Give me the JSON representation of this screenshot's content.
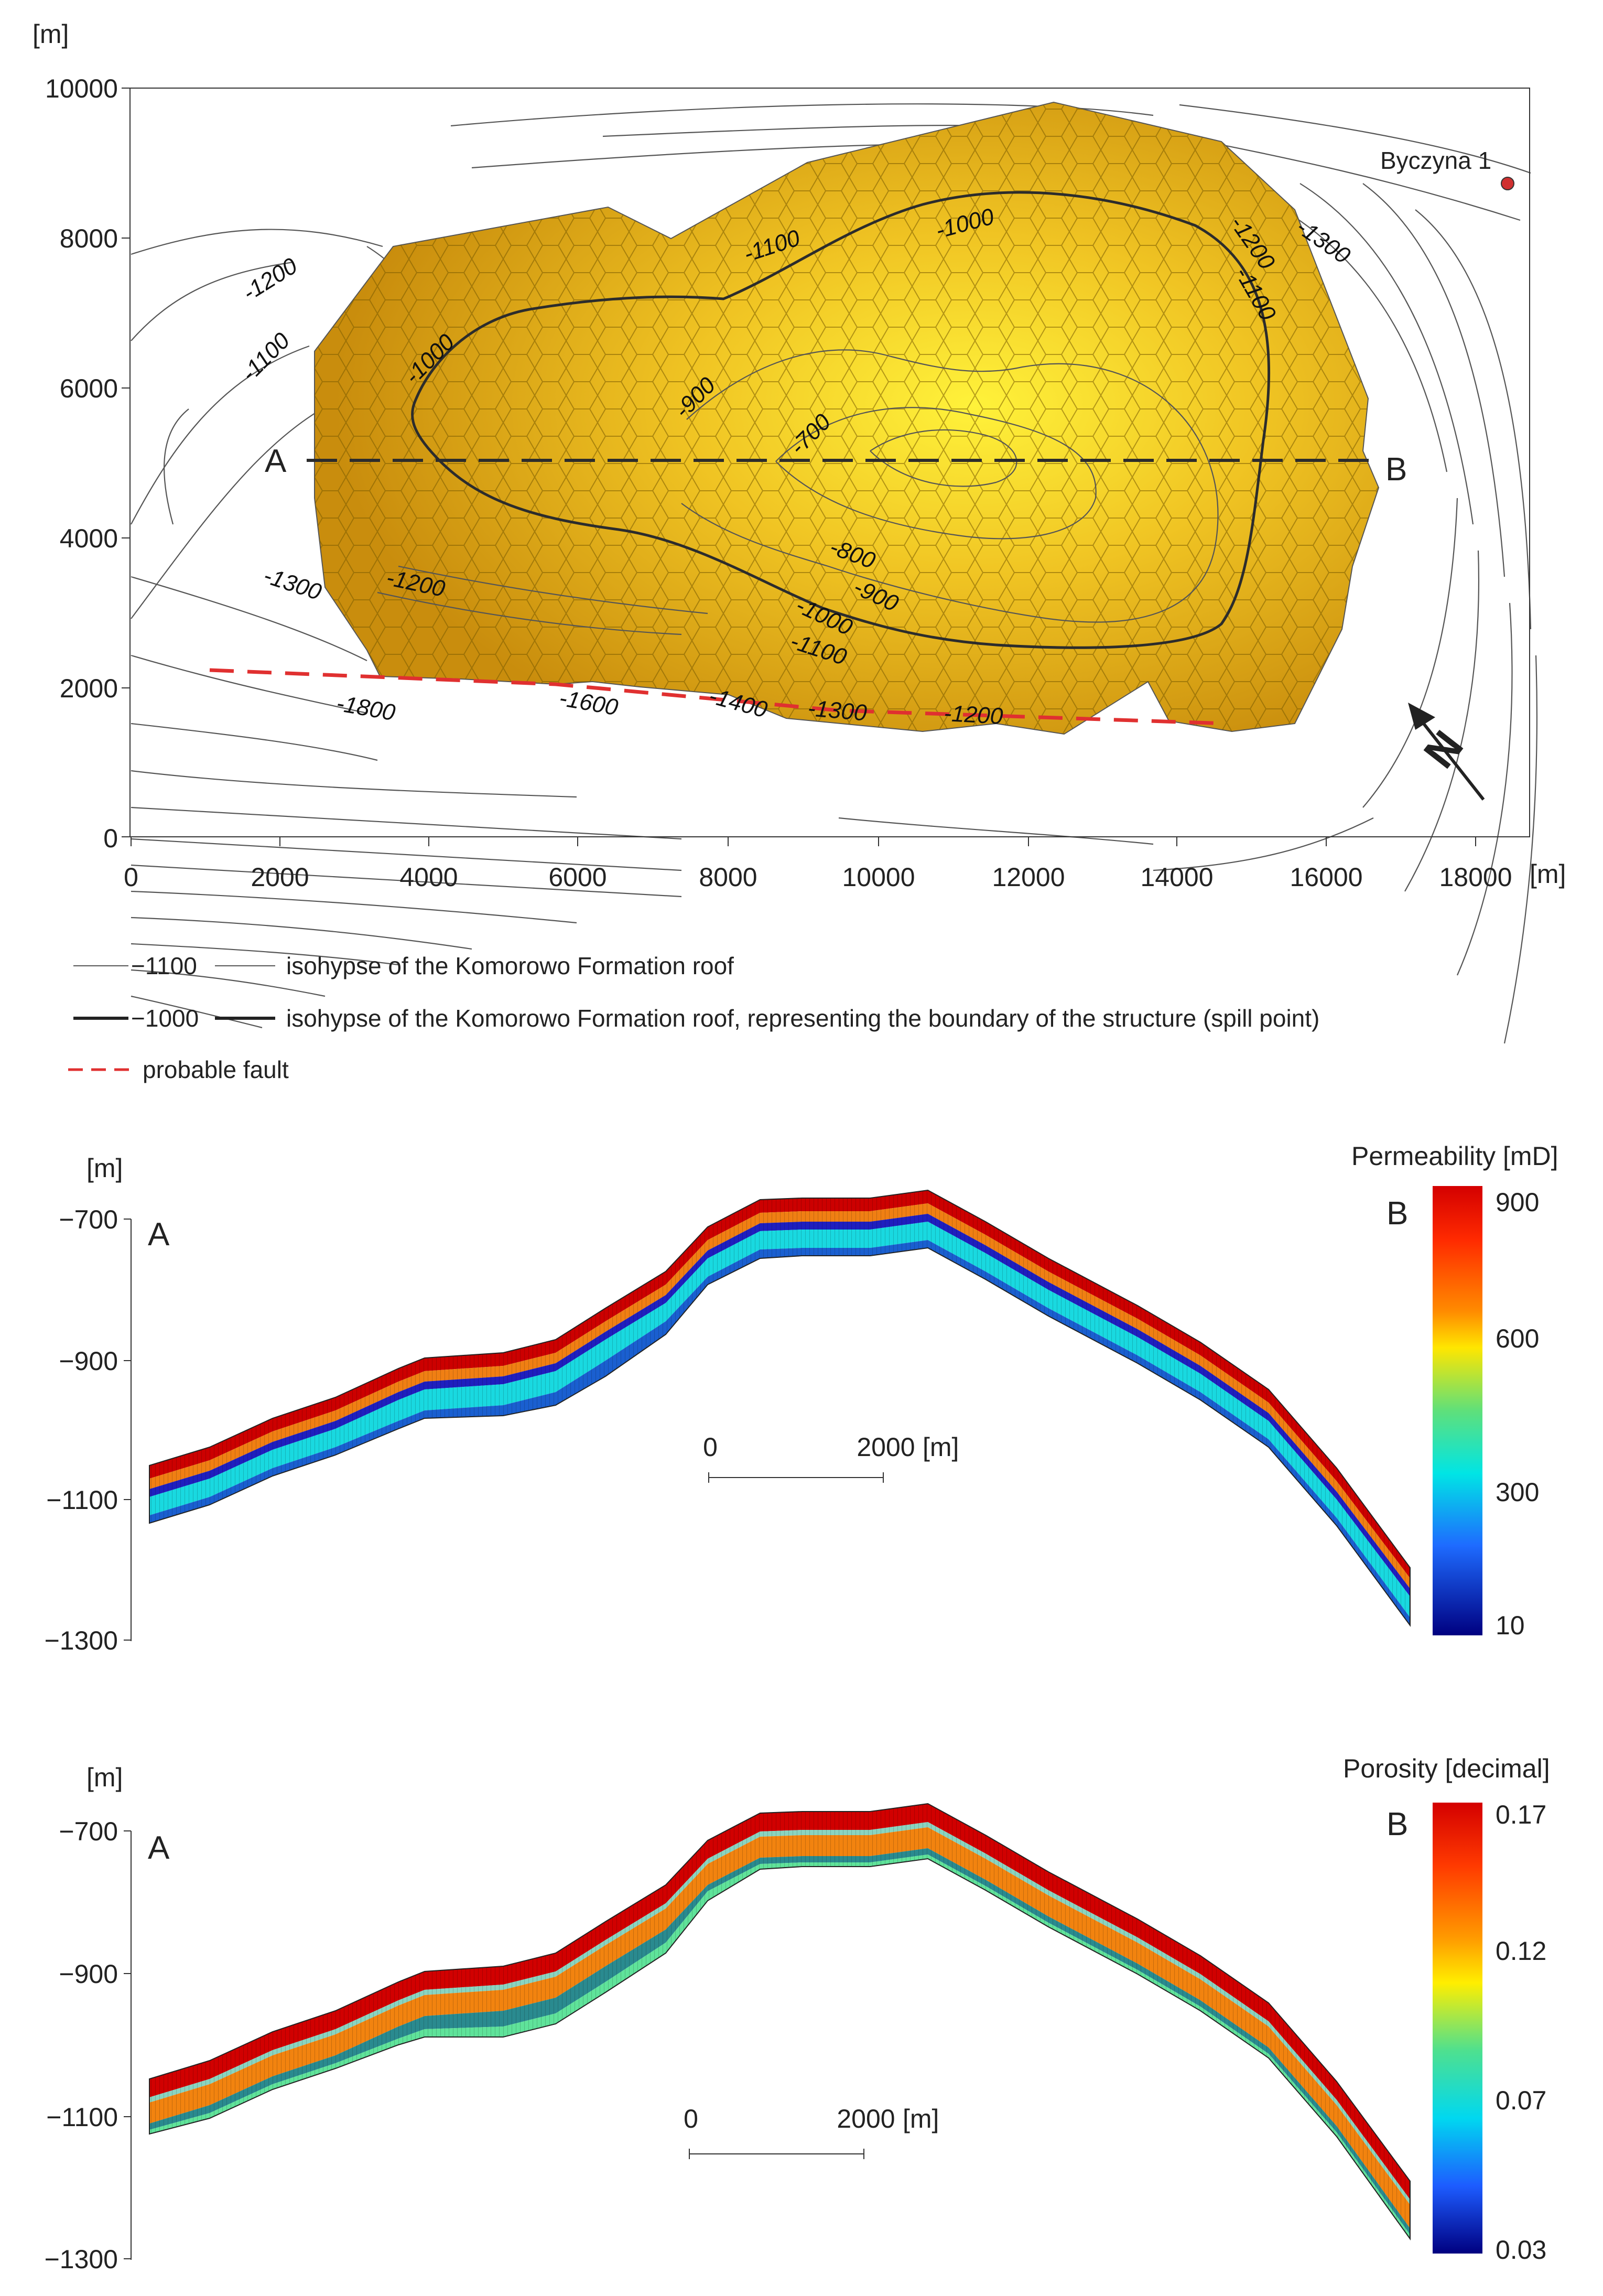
{
  "map": {
    "unit_y": "[m]",
    "unit_x": "[m]",
    "x_ticks": [
      "0",
      "2000",
      "4000",
      "6000",
      "8000",
      "10000",
      "12000",
      "14000",
      "16000",
      "18000"
    ],
    "y_ticks": [
      "10000",
      "8000",
      "6000",
      "4000",
      "2000",
      "0"
    ],
    "well_name": "Byczyna 1",
    "section_start": "A",
    "section_end": "B",
    "north_symbol": "N",
    "contour_labels": [
      "-1200",
      "-1100",
      "-1000",
      "-900",
      "-700",
      "-1100",
      "-1000",
      "-1200",
      "-1300",
      "-1100",
      "-1300",
      "-1200",
      "-800",
      "-900",
      "-1000",
      "-1100",
      "-1800",
      "-1600",
      "-1400",
      "-1300",
      "-1200"
    ],
    "colors": {
      "structure": "#e8b21c",
      "fault": "#e03030",
      "isohypse": "#555555"
    }
  },
  "legend": {
    "thin_sample": "−1100",
    "thin_text": "isohypse of the Komorowo Formation roof",
    "thick_sample": "−1000",
    "thick_text": "isohypse of the Komorowo Formation roof, representing the boundary of the structure (spill point)",
    "fault_text": "probable fault"
  },
  "permeability_section": {
    "y_unit": "[m]",
    "y_ticks": [
      "−700",
      "−900",
      "−1100",
      "−1300"
    ],
    "label_start": "A",
    "label_end": "B",
    "scale_zero": "0",
    "scale_value": "2000",
    "scale_unit": "[m]",
    "colorbar_title": "Permeability [mD]",
    "colorbar_ticks": [
      "900",
      "600",
      "300",
      "10"
    ]
  },
  "porosity_section": {
    "y_unit": "[m]",
    "y_ticks": [
      "−700",
      "−900",
      "−1100",
      "−1300"
    ],
    "label_start": "A",
    "label_end": "B",
    "scale_zero": "0",
    "scale_value": "2000",
    "scale_unit": "[m]",
    "colorbar_title": "Porosity [decimal]",
    "colorbar_ticks": [
      "0.17",
      "0.12",
      "0.07",
      "0.03"
    ]
  }
}
